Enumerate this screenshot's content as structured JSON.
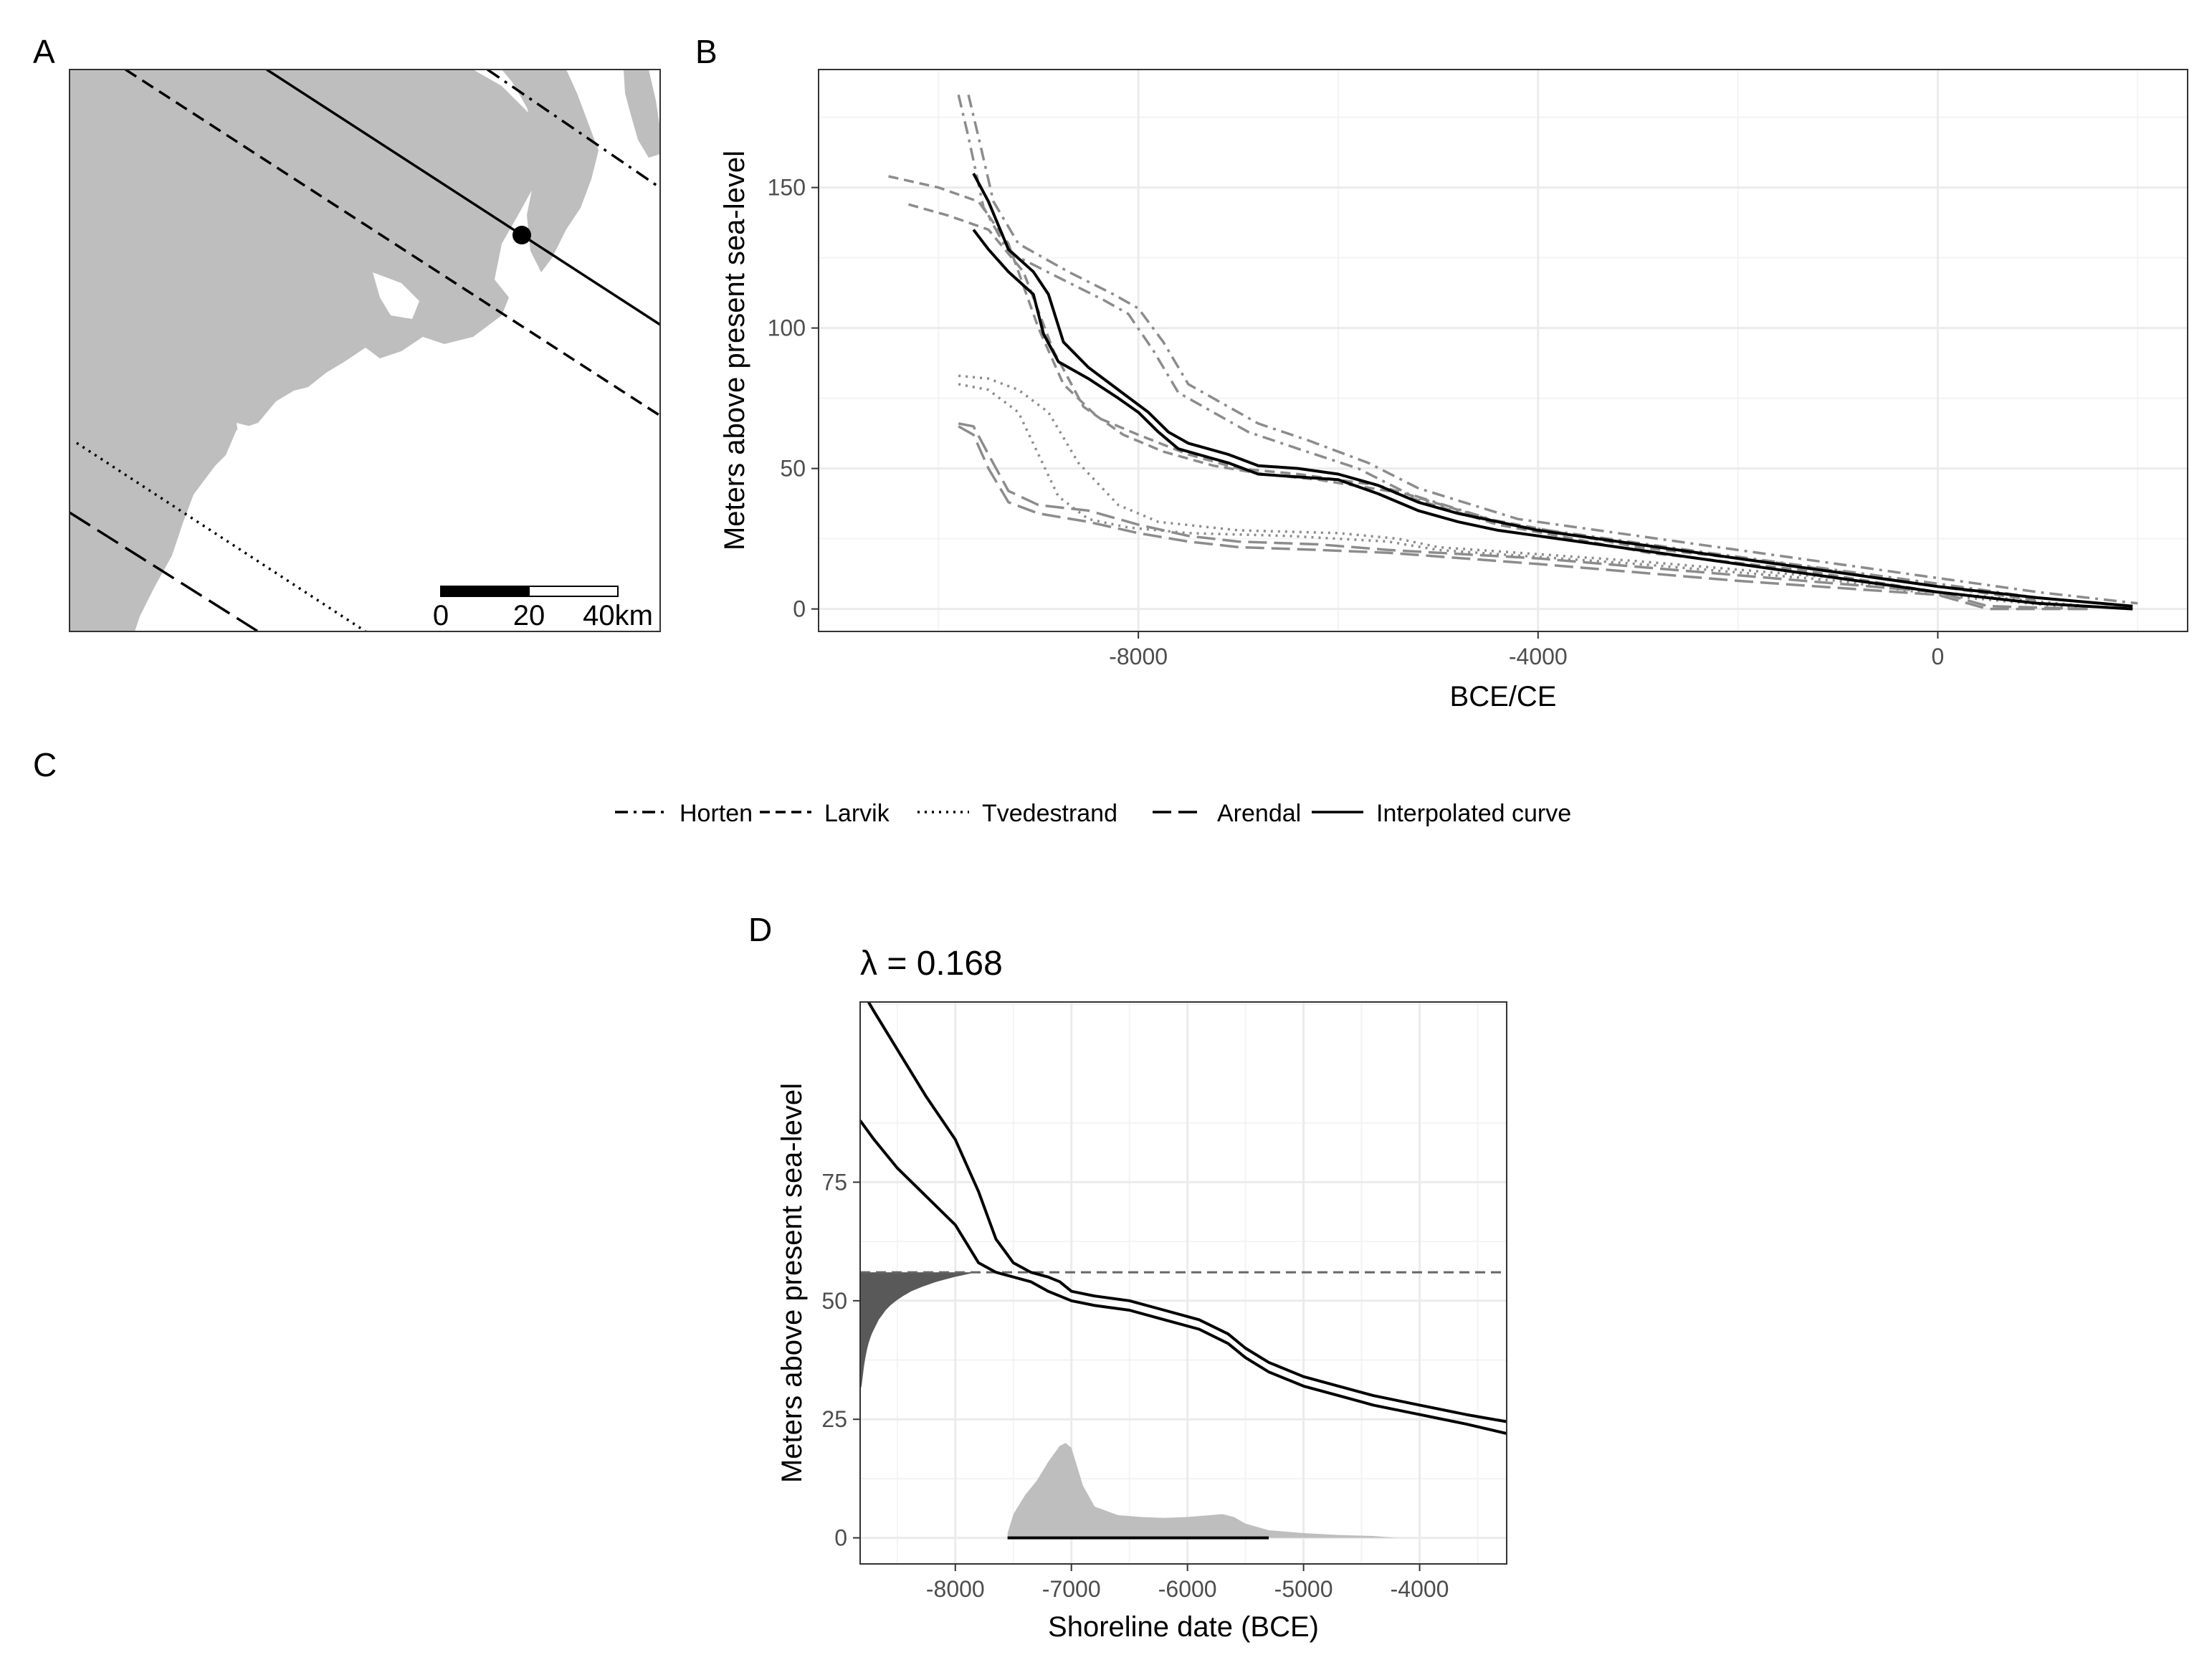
{
  "panel_labels": {
    "a": "A",
    "b": "B",
    "c": "C",
    "d": "D"
  },
  "colors": {
    "land": "#bebebe",
    "interpolated": "#000000",
    "reference": "#8c8c8c",
    "grid_major": "#ebebeb",
    "grid_minor": "#f3f3f3",
    "dark_density": "#595959",
    "light_density": "#bebebe",
    "dashed_hline": "#666666"
  },
  "map": {
    "scale_bar": {
      "tick_labels": [
        "0",
        "20",
        "40km"
      ]
    },
    "isobases": [
      "Horten",
      "Larvik",
      "Tvedestrand",
      "Arendal"
    ],
    "site_marker": "black-dot"
  },
  "legend": {
    "items": [
      {
        "label": "Horten",
        "linetype": "dotdash"
      },
      {
        "label": "Larvik",
        "linetype": "dashed"
      },
      {
        "label": "Tvedestrand",
        "linetype": "dotted"
      },
      {
        "label": "Arendal",
        "linetype": "longdash"
      },
      {
        "label": "Interpolated curve",
        "linetype": "solid"
      }
    ]
  },
  "chart_data": [
    {
      "type": "line",
      "panel": "B",
      "xlabel": "BCE/CE",
      "ylabel": "Meters above present sea-level",
      "xlim": [
        -11200,
        2500
      ],
      "ylim": [
        -8,
        192
      ],
      "xticks": [
        -8000,
        -4000,
        0
      ],
      "xtick_labels": [
        "-8000",
        "-4000",
        "0"
      ],
      "yticks": [
        0,
        50,
        100,
        150
      ],
      "ytick_labels": [
        "0",
        "50",
        "100",
        "150"
      ],
      "grid": true,
      "series": [
        {
          "name": "Horten",
          "linetype": "dotdash",
          "band": "upper",
          "x": [
            -9700,
            -9600,
            -9450,
            -9200,
            -8700,
            -8250,
            -8000,
            -7750,
            -7500,
            -7200,
            -6800,
            -6300,
            -5700,
            -5200,
            -4200,
            -2200,
            0,
            1000,
            2000
          ],
          "y": [
            183,
            168,
            145,
            130,
            120,
            112,
            107,
            95,
            80,
            74,
            66,
            60,
            52,
            43,
            32,
            22,
            11,
            6,
            2
          ]
        },
        {
          "name": "Horten",
          "linetype": "dotdash",
          "band": "lower",
          "x": [
            -9800,
            -9700,
            -9550,
            -9300,
            -8800,
            -8350,
            -8100,
            -7850,
            -7600,
            -7300,
            -6900,
            -6400,
            -5800,
            -5300,
            -4300,
            -2300,
            0,
            1000,
            1900
          ],
          "y": [
            183,
            168,
            143,
            127,
            118,
            110,
            105,
            92,
            77,
            71,
            63,
            57,
            50,
            41,
            30,
            20,
            9,
            4,
            1
          ]
        },
        {
          "name": "Larvik",
          "linetype": "dashed",
          "band": "upper",
          "x": [
            -10500,
            -10000,
            -9600,
            -9300,
            -9000,
            -8750,
            -8400,
            -8000,
            -7500,
            -7000,
            -6400,
            -5600,
            -4500,
            -3000,
            -1500,
            0,
            1000
          ],
          "y": [
            154,
            150,
            145,
            130,
            100,
            80,
            68,
            62,
            55,
            50,
            48,
            44,
            32,
            22,
            16,
            8,
            3
          ]
        },
        {
          "name": "Larvik",
          "linetype": "dashed",
          "band": "lower",
          "x": [
            -10300,
            -9900,
            -9500,
            -9150,
            -8850,
            -8550,
            -8150,
            -7750,
            -7250,
            -6750,
            -6200,
            -5500,
            -4400,
            -2900,
            -1400,
            0,
            1000
          ],
          "y": [
            144,
            140,
            135,
            120,
            92,
            72,
            62,
            56,
            51,
            48,
            46,
            42,
            30,
            20,
            14,
            6,
            2
          ]
        },
        {
          "name": "Tvedestrand",
          "linetype": "dotted",
          "band": "upper",
          "x": [
            -9800,
            -9500,
            -9200,
            -8900,
            -8600,
            -8200,
            -7800,
            -7000,
            -6000,
            -5400,
            -5000,
            -3000,
            -1000,
            0,
            1500
          ],
          "y": [
            83,
            82,
            78,
            70,
            52,
            37,
            31,
            28,
            27,
            25,
            22,
            17,
            11,
            6,
            1
          ]
        },
        {
          "name": "Tvedestrand",
          "linetype": "dotted",
          "band": "lower",
          "x": [
            -9800,
            -9500,
            -9200,
            -9000,
            -8800,
            -8500,
            -8100,
            -7500,
            -6500,
            -5500,
            -5000,
            -3000,
            -1000,
            0,
            1500
          ],
          "y": [
            80,
            78,
            70,
            55,
            40,
            32,
            29,
            27,
            26,
            24,
            21,
            16,
            10,
            5,
            0
          ]
        },
        {
          "name": "Arendal",
          "linetype": "longdash",
          "band": "upper",
          "x": [
            -9800,
            -9650,
            -9500,
            -9300,
            -9000,
            -8500,
            -8000,
            -7500,
            -7000,
            -6200,
            -5500,
            -4000,
            -2000,
            0,
            500,
            1500
          ],
          "y": [
            66,
            65,
            55,
            42,
            37,
            35,
            30,
            26,
            24,
            23,
            21,
            18,
            12,
            6,
            1,
            0
          ]
        },
        {
          "name": "Arendal",
          "linetype": "longdash",
          "band": "lower",
          "x": [
            -9800,
            -9650,
            -9500,
            -9300,
            -9000,
            -8500,
            -8000,
            -7500,
            -7000,
            -6200,
            -5500,
            -4000,
            -2000,
            0,
            500,
            1500
          ],
          "y": [
            65,
            62,
            50,
            38,
            34,
            31,
            27,
            24,
            22,
            21,
            20,
            16,
            10,
            5,
            0,
            0
          ]
        },
        {
          "name": "Interpolated curve",
          "linetype": "solid",
          "band": "upper",
          "x": [
            -9650,
            -9500,
            -9300,
            -9050,
            -8900,
            -8750,
            -8500,
            -8200,
            -7900,
            -7700,
            -7500,
            -7300,
            -7100,
            -6800,
            -6400,
            -6000,
            -5600,
            -5200,
            -4800,
            -4400,
            -4000,
            -3000,
            -2000,
            -1000,
            0,
            1000,
            1950
          ],
          "y": [
            155,
            145,
            128,
            120,
            112,
            95,
            86,
            78,
            70,
            63,
            59,
            57,
            55,
            51,
            50,
            48,
            44,
            38,
            34,
            31,
            28,
            23,
            18,
            13,
            8,
            4,
            1
          ]
        },
        {
          "name": "Interpolated curve",
          "linetype": "solid",
          "band": "lower",
          "x": [
            -9650,
            -9500,
            -9300,
            -9050,
            -8950,
            -8800,
            -8500,
            -8200,
            -8000,
            -7800,
            -7600,
            -7300,
            -7100,
            -6800,
            -6400,
            -6000,
            -5600,
            -5200,
            -4800,
            -4400,
            -4000,
            -3000,
            -2000,
            -1000,
            0,
            1000,
            1950
          ],
          "y": [
            135,
            128,
            120,
            112,
            98,
            88,
            82,
            75,
            70,
            63,
            57,
            54,
            52,
            48,
            47,
            46,
            41,
            35,
            31,
            28,
            26,
            21,
            16,
            11,
            6,
            2,
            0
          ]
        }
      ]
    },
    {
      "type": "line",
      "panel": "D",
      "title": "λ  =  0.168",
      "xlabel": "Shoreline date (BCE)",
      "ylabel": "Meters above present sea-level",
      "xlim": [
        -8820,
        -3250
      ],
      "ylim": [
        -5.5,
        113
      ],
      "xticks": [
        -8000,
        -7000,
        -6000,
        -5000,
        -4000
      ],
      "xtick_labels": [
        "-8000",
        "-7000",
        "-6000",
        "-5000",
        "-4000"
      ],
      "yticks": [
        0,
        25,
        50,
        75
      ],
      "ytick_labels": [
        "0",
        "25",
        "50",
        "75"
      ],
      "grid": true,
      "site_elevation": 56,
      "series": [
        {
          "name": "",
          "band": "upper",
          "x": [
            -8820,
            -8700,
            -8500,
            -8250,
            -8000,
            -7800,
            -7650,
            -7500,
            -7350,
            -7200,
            -7100,
            -7000,
            -6800,
            -6500,
            -6200,
            -5900,
            -5650,
            -5500,
            -5300,
            -5000,
            -4700,
            -4400,
            -4000,
            -3600,
            -3250
          ],
          "y": [
            116,
            111,
            103,
            93,
            84,
            73,
            63,
            58,
            56,
            55,
            54,
            52,
            51,
            50,
            48,
            46,
            43,
            40,
            37,
            34,
            32,
            30,
            28,
            26,
            24.5
          ]
        },
        {
          "name": "",
          "band": "lower",
          "x": [
            -8820,
            -8700,
            -8500,
            -8250,
            -8000,
            -7900,
            -7800,
            -7650,
            -7500,
            -7350,
            -7200,
            -7100,
            -7000,
            -6800,
            -6500,
            -6200,
            -5900,
            -5650,
            -5500,
            -5300,
            -5000,
            -4700,
            -4400,
            -4000,
            -3600,
            -3250
          ],
          "y": [
            88,
            84,
            78,
            72,
            66,
            62,
            58,
            56,
            55,
            54,
            52,
            51,
            50,
            49,
            48,
            46,
            44,
            41,
            38,
            35,
            32,
            30,
            28,
            26,
            24,
            22
          ]
        }
      ],
      "elevation_density": {
        "y": [
          56,
          55,
          54,
          53,
          52,
          51,
          50,
          49,
          48,
          47,
          46,
          45,
          44,
          43,
          42,
          41,
          40,
          39,
          38,
          37,
          36,
          35,
          34,
          33,
          32,
          31
        ],
        "density": [
          1,
          0.81,
          0.66,
          0.54,
          0.44,
          0.37,
          0.31,
          0.26,
          0.22,
          0.19,
          0.16,
          0.14,
          0.12,
          0.1,
          0.085,
          0.072,
          0.062,
          0.053,
          0.045,
          0.038,
          0.032,
          0.027,
          0.022,
          0.017,
          0.012,
          0
        ]
      },
      "date_density": {
        "x": [
          -7550,
          -7500,
          -7400,
          -7300,
          -7200,
          -7100,
          -7050,
          -7000,
          -6900,
          -6800,
          -6600,
          -6400,
          -6200,
          -6000,
          -5800,
          -5700,
          -5600,
          -5500,
          -5300,
          -5000,
          -4700,
          -4400,
          -4200
        ],
        "density": [
          0.05,
          0.25,
          0.45,
          0.6,
          0.8,
          0.97,
          1.0,
          0.95,
          0.55,
          0.33,
          0.24,
          0.22,
          0.21,
          0.22,
          0.24,
          0.25,
          0.22,
          0.15,
          0.08,
          0.05,
          0.03,
          0.02,
          0
        ]
      },
      "interval": [
        -7550,
        -5300
      ]
    }
  ]
}
